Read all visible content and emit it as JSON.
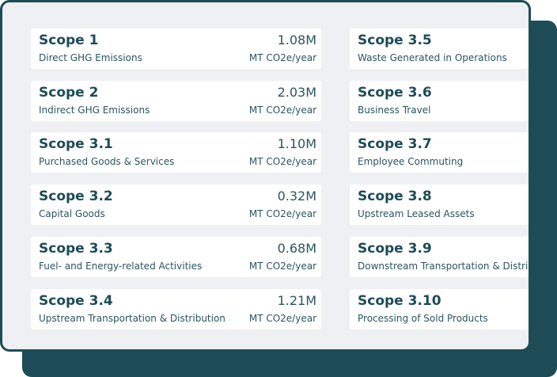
{
  "left_cards": [
    {
      "title": "Scope 1",
      "subtitle": "Direct GHG Emissions",
      "value": "1.08M",
      "unit": "MT CO2e/year"
    },
    {
      "title": "Scope 2",
      "subtitle": "Indirect GHG Emissions",
      "value": "2.03M",
      "unit": "MT CO2e/year"
    },
    {
      "title": "Scope 3.1",
      "subtitle": "Purchased Goods & Services",
      "value": "1.10M",
      "unit": "MT CO2e/year"
    },
    {
      "title": "Scope 3.2",
      "subtitle": "Capital Goods",
      "value": "0.32M",
      "unit": "MT CO2e/year"
    },
    {
      "title": "Scope 3.3",
      "subtitle": "Fuel- and Energy-related Activities",
      "value": "0.68M",
      "unit": "MT CO2e/year"
    },
    {
      "title": "Scope 3.4",
      "subtitle": "Upstream Transportation & Distribution",
      "value": "1.21M",
      "unit": "MT CO2e/year"
    }
  ],
  "right_cards": [
    {
      "title": "Scope 3.5",
      "subtitle": "Waste Generated in Operations"
    },
    {
      "title": "Scope 3.6",
      "subtitle": "Business Travel"
    },
    {
      "title": "Scope 3.7",
      "subtitle": "Employee Commuting"
    },
    {
      "title": "Scope 3.8",
      "subtitle": "Upstream Leased Assets"
    },
    {
      "title": "Scope 3.9",
      "subtitle": "Downstream Transportation & Distrib"
    },
    {
      "title": "Scope 3.10",
      "subtitle": "Processing of Sold Products"
    }
  ],
  "colors": {
    "accent": "#1d4c57",
    "panel_bg": "#eef0f3",
    "card_bg": "#ffffff"
  }
}
